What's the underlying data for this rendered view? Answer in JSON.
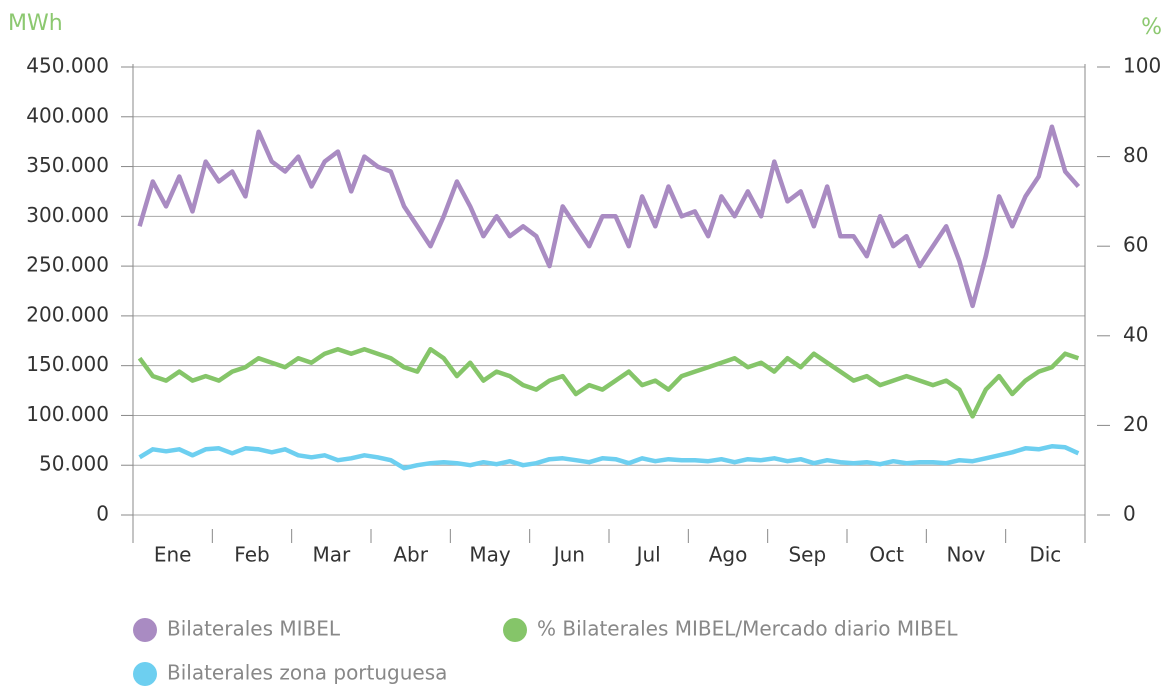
{
  "chart_data": {
    "type": "line",
    "y_label": "MWh",
    "y2_label": "%",
    "categories": [
      "Ene",
      "Feb",
      "Mar",
      "Abr",
      "May",
      "Jun",
      "Jul",
      "Ago",
      "Sep",
      "Oct",
      "Nov",
      "Dic"
    ],
    "ylim": [
      0,
      450000
    ],
    "yticks": [
      0,
      {
        "value": 50000,
        "label": "50.000"
      },
      {
        "value": 100000,
        "label": "100.000"
      },
      {
        "value": 150000,
        "label": "150.000"
      },
      {
        "value": 200000,
        "label": "200.000"
      },
      {
        "value": 250000,
        "label": "250.000"
      },
      {
        "value": 300000,
        "label": "300.000"
      },
      {
        "value": 350000,
        "label": "350.000"
      },
      {
        "value": 400000,
        "label": "400.000"
      },
      {
        "value": 450000,
        "label": "450.000"
      }
    ],
    "y2lim": [
      0,
      100
    ],
    "y2ticks": [
      0,
      20,
      40,
      60,
      80,
      100
    ],
    "grid": true,
    "legend": "bottom",
    "series": [
      {
        "name": "Bilaterales MIBEL",
        "color": "#a98bc2",
        "values": [
          [
            290000,
            335000,
            310000,
            340000,
            305000,
            355000
          ],
          [
            335000,
            345000,
            320000,
            385000,
            355000,
            345000
          ],
          [
            360000,
            330000,
            355000,
            365000,
            325000,
            360000
          ],
          [
            350000,
            345000,
            310000,
            290000,
            270000,
            300000
          ],
          [
            335000,
            310000,
            280000,
            300000,
            280000,
            290000
          ],
          [
            280000,
            250000,
            310000,
            290000,
            270000,
            300000
          ],
          [
            300000,
            270000,
            320000,
            290000,
            330000,
            300000
          ],
          [
            305000,
            280000,
            320000,
            300000,
            325000,
            300000
          ],
          [
            355000,
            315000,
            325000,
            290000,
            330000,
            280000
          ],
          [
            280000,
            260000,
            300000,
            270000,
            280000,
            250000
          ],
          [
            270000,
            290000,
            255000,
            210000,
            260000,
            320000
          ],
          [
            290000,
            320000,
            340000,
            390000,
            345000,
            330000
          ]
        ]
      },
      {
        "name": "% Bilaterales MIBEL/Mercado diario MIBEL",
        "color": "#85c569",
        "axis": "y2",
        "values": [
          [
            35,
            31,
            30,
            32,
            30,
            31
          ],
          [
            30,
            32,
            33,
            35,
            34,
            33
          ],
          [
            35,
            34,
            36,
            37,
            36,
            37
          ],
          [
            36,
            35,
            33,
            32,
            37,
            35
          ],
          [
            31,
            34,
            30,
            32,
            31,
            29
          ],
          [
            28,
            30,
            31,
            27,
            29,
            28
          ],
          [
            30,
            32,
            29,
            30,
            28,
            31
          ],
          [
            32,
            33,
            34,
            35,
            33,
            34
          ],
          [
            32,
            35,
            33,
            36,
            34,
            32
          ],
          [
            30,
            31,
            29,
            30,
            31,
            30
          ],
          [
            29,
            30,
            28,
            22,
            28,
            31
          ],
          [
            27,
            30,
            32,
            33,
            36,
            35
          ]
        ]
      },
      {
        "name": "Bilaterales zona portuguesa",
        "color": "#6dcff0",
        "values": [
          [
            58000,
            66000,
            64000,
            66000,
            60000,
            66000
          ],
          [
            67000,
            62000,
            67000,
            66000,
            63000,
            66000
          ],
          [
            60000,
            58000,
            60000,
            55000,
            57000,
            60000
          ],
          [
            58000,
            55000,
            47000,
            50000,
            52000,
            53000
          ],
          [
            52000,
            50000,
            53000,
            51000,
            54000,
            50000
          ],
          [
            52000,
            56000,
            57000,
            55000,
            53000,
            57000
          ],
          [
            56000,
            52000,
            57000,
            54000,
            56000,
            55000
          ],
          [
            55000,
            54000,
            56000,
            53000,
            56000,
            55000
          ],
          [
            57000,
            54000,
            56000,
            52000,
            55000,
            53000
          ],
          [
            52000,
            53000,
            51000,
            54000,
            52000,
            53000
          ],
          [
            53000,
            52000,
            55000,
            54000,
            57000,
            60000
          ],
          [
            63000,
            67000,
            66000,
            69000,
            68000,
            62000
          ]
        ]
      }
    ]
  }
}
